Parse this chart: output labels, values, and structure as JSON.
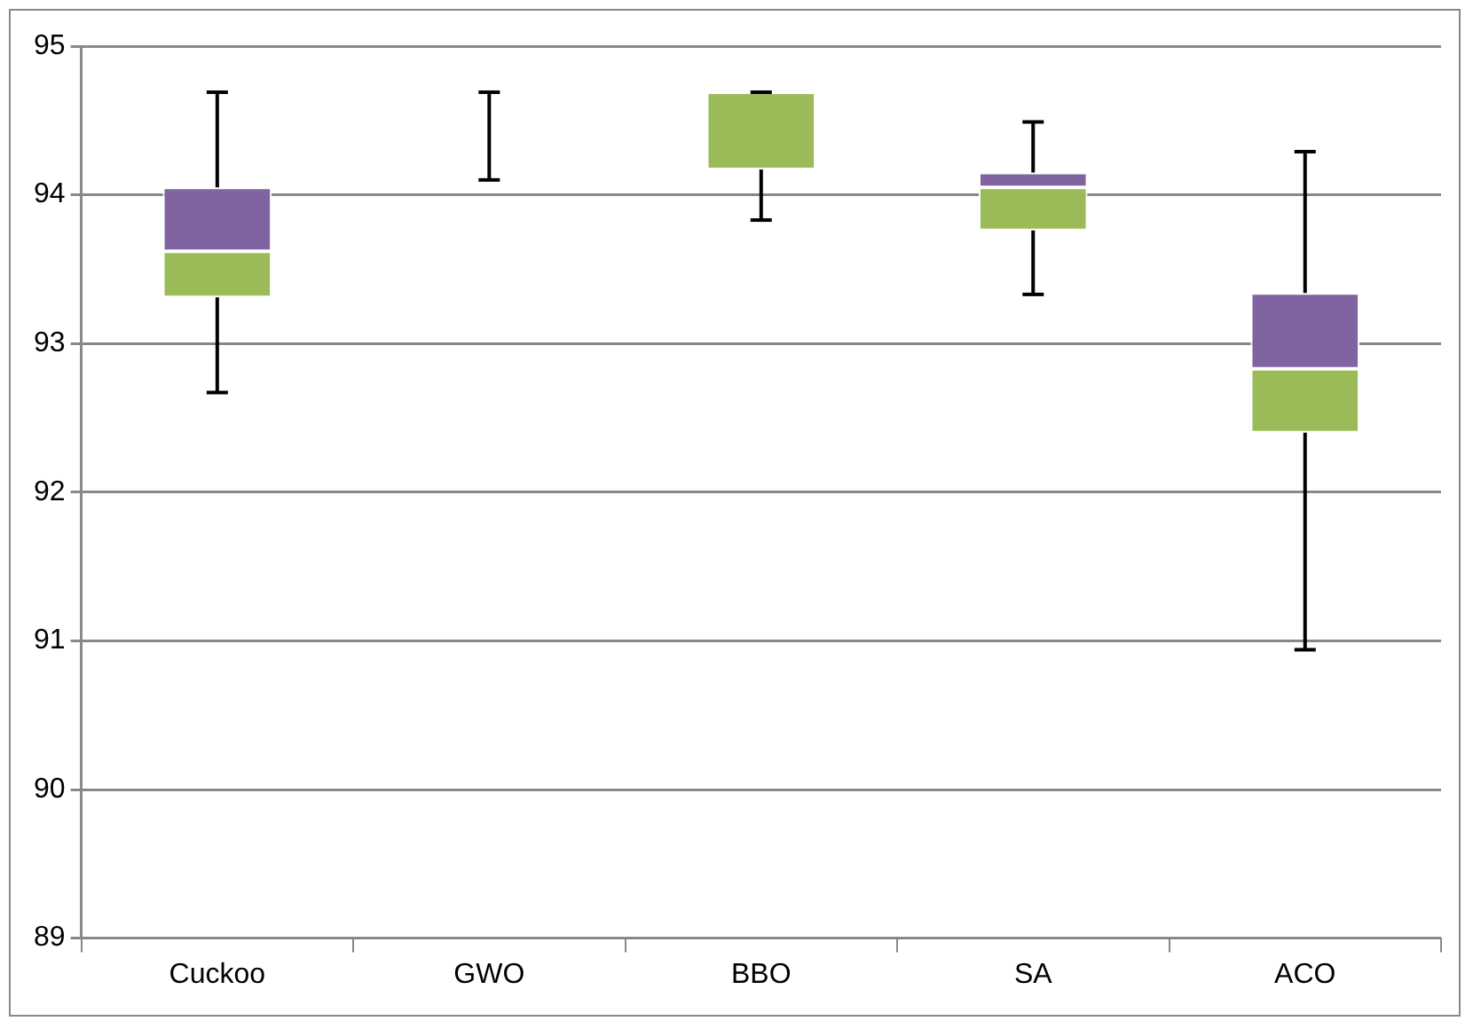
{
  "chart_data": {
    "type": "box",
    "categories": [
      "Cuckoo",
      "GWO",
      "BBO",
      "SA",
      "ACO"
    ],
    "colors": [
      [
        "#9bbb59",
        "#8064a2"
      ],
      [
        "#9bbb59",
        "#8064a2"
      ],
      [
        "#9bbb59",
        "#8064a2"
      ],
      [
        "#9bbb59",
        "#8064a2"
      ],
      [
        "#9bbb59",
        "#8064a2"
      ]
    ],
    "boxes": [
      {
        "low": 92.67,
        "q1": 93.31,
        "median": 93.62,
        "q3": 94.05,
        "high": 94.69
      },
      {
        "low": 94.1,
        "q1": 94.69,
        "median": 94.69,
        "q3": 94.69,
        "high": 94.69
      },
      {
        "low": 93.83,
        "q1": 94.17,
        "median": 94.69,
        "q3": 94.69,
        "high": 94.69
      },
      {
        "low": 93.33,
        "q1": 93.76,
        "median": 94.05,
        "q3": 94.15,
        "high": 94.49
      },
      {
        "low": 90.94,
        "q1": 92.4,
        "median": 92.83,
        "q3": 93.34,
        "high": 94.29
      }
    ],
    "ylim": [
      89,
      95
    ],
    "yticks": [
      89,
      90,
      91,
      92,
      93,
      94,
      95
    ],
    "grid": "y",
    "legend": false
  }
}
